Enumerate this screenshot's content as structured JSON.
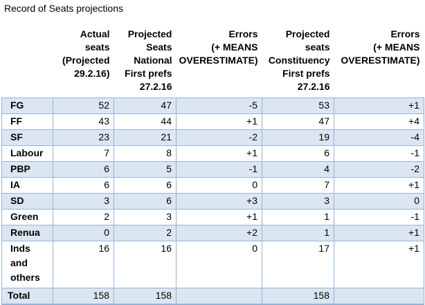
{
  "title": "Record of Seats projections",
  "headers": [
    "",
    "Actual\nseats\n(Projected\n29.2.16)",
    "Projected\nSeats\nNational\nFirst prefs\n27.2.16",
    "Errors\n(+ MEANS\nOVERESTIMATE)",
    "Projected\nseats\nConstituency\nFirst prefs\n27.2.16",
    "Errors\n(+ MEANS\nOVERESTIMATE)"
  ],
  "rows": [
    {
      "party": "FG",
      "cells": [
        "52",
        "47",
        "-5",
        "53",
        "+1"
      ]
    },
    {
      "party": "FF",
      "cells": [
        "43",
        "44",
        "+1",
        "47",
        "+4"
      ]
    },
    {
      "party": "SF",
      "cells": [
        "23",
        "21",
        "-2",
        "19",
        "-4"
      ]
    },
    {
      "party": "Labour",
      "cells": [
        "7",
        "8",
        "+1",
        "6",
        "-1"
      ]
    },
    {
      "party": "PBP",
      "cells": [
        "6",
        "5",
        "-1",
        "4",
        "-2"
      ]
    },
    {
      "party": "IA",
      "cells": [
        "6",
        "6",
        "0",
        "7",
        "+1"
      ]
    },
    {
      "party": "SD",
      "cells": [
        "3",
        "6",
        "+3",
        "3",
        "0"
      ]
    },
    {
      "party": "Green",
      "cells": [
        "2",
        "3",
        "+1",
        "1",
        "-1"
      ]
    },
    {
      "party": "Renua",
      "cells": [
        "0",
        "2",
        "+2",
        "1",
        "+1"
      ]
    },
    {
      "party": "Inds\nand\nothers",
      "cells": [
        "16",
        "16",
        "0",
        "17",
        "+1"
      ]
    },
    {
      "party": "Total",
      "cells": [
        "158",
        "158",
        "",
        "158",
        ""
      ]
    }
  ],
  "colors": {
    "row_shade": "#dce6f1",
    "grid_line": "#95b3d7"
  }
}
